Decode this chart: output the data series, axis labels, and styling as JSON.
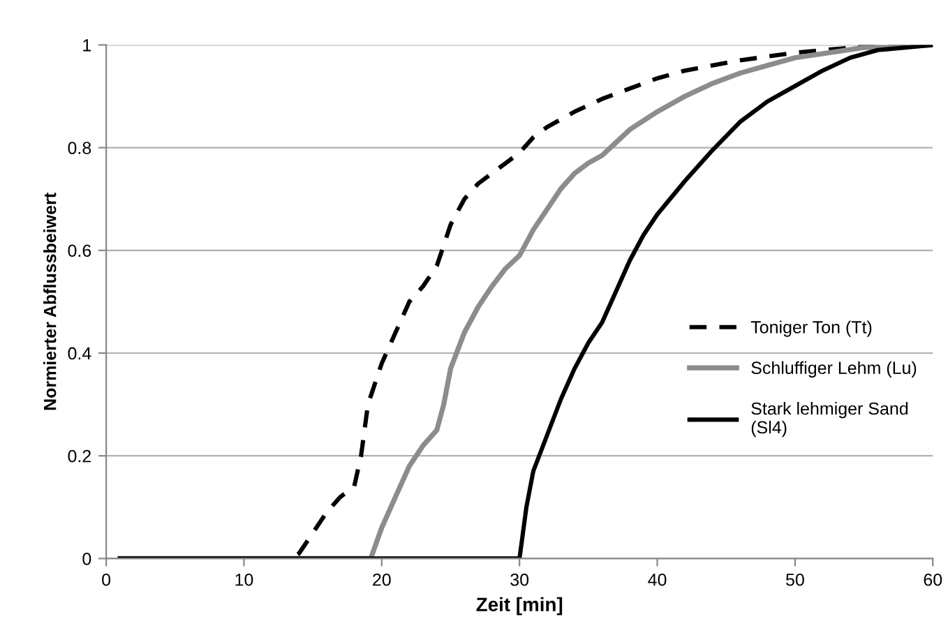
{
  "chart_data": {
    "type": "line",
    "xlabel": "Zeit [min]",
    "ylabel": "Normierter Abflussbeiwert",
    "xlim": [
      0,
      60
    ],
    "ylim": [
      0,
      1
    ],
    "xticks": [
      0,
      10,
      20,
      30,
      40,
      50,
      60
    ],
    "yticks": [
      0,
      0.2,
      0.4,
      0.6,
      0.8,
      1
    ],
    "grid": "y",
    "legend": "right",
    "marker": "none",
    "series": [
      {
        "name": "Toniger Ton (Tt)",
        "color": "#000000",
        "line_style": "dashed",
        "x": [
          1,
          13.5,
          14,
          15,
          16,
          17,
          18,
          18.5,
          19,
          20,
          21,
          22,
          23,
          24,
          25,
          26,
          27,
          28,
          29,
          30,
          31,
          32,
          34,
          36,
          38,
          40,
          42,
          44,
          46,
          50,
          55,
          60
        ],
        "values": [
          0,
          0,
          0.01,
          0.05,
          0.09,
          0.12,
          0.14,
          0.2,
          0.3,
          0.38,
          0.44,
          0.5,
          0.53,
          0.57,
          0.65,
          0.7,
          0.73,
          0.75,
          0.77,
          0.79,
          0.82,
          0.84,
          0.87,
          0.895,
          0.915,
          0.935,
          0.95,
          0.96,
          0.97,
          0.985,
          0.997,
          1
        ]
      },
      {
        "name": "Schluffiger Lehm (Lu)",
        "color": "#8c8c8c",
        "line_style": "solid",
        "x": [
          1,
          19.2,
          20,
          21,
          22,
          23,
          24,
          24.5,
          25,
          26,
          27,
          28,
          29,
          30,
          31,
          32,
          33,
          34,
          35,
          36,
          37,
          38,
          40,
          42,
          44,
          46,
          48,
          50,
          55,
          60
        ],
        "values": [
          0,
          0,
          0.06,
          0.12,
          0.18,
          0.22,
          0.25,
          0.3,
          0.37,
          0.44,
          0.49,
          0.53,
          0.565,
          0.59,
          0.64,
          0.68,
          0.72,
          0.75,
          0.77,
          0.785,
          0.81,
          0.835,
          0.87,
          0.9,
          0.925,
          0.945,
          0.96,
          0.975,
          0.995,
          1
        ]
      },
      {
        "name": "Stark lehmiger Sand\n(Sl4)",
        "color": "#000000",
        "line_style": "solid",
        "x": [
          1,
          29,
          30,
          30.5,
          31,
          32,
          33,
          34,
          35,
          36,
          37,
          38,
          39,
          40,
          42,
          44,
          46,
          48,
          50,
          52,
          54,
          56,
          60
        ],
        "values": [
          0,
          0,
          0,
          0.1,
          0.17,
          0.24,
          0.31,
          0.37,
          0.42,
          0.46,
          0.52,
          0.58,
          0.63,
          0.67,
          0.735,
          0.795,
          0.85,
          0.89,
          0.92,
          0.95,
          0.975,
          0.99,
          1
        ]
      }
    ]
  }
}
